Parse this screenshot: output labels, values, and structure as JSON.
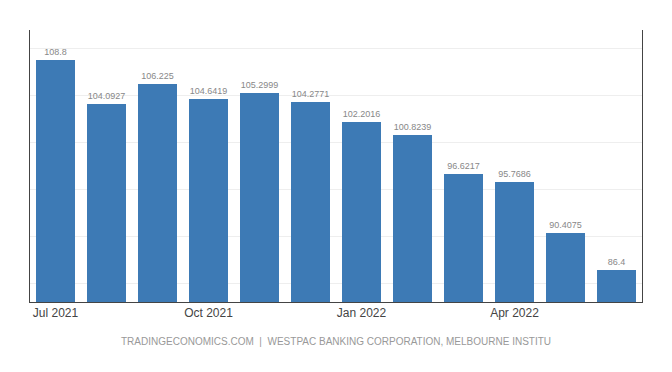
{
  "chart_data": {
    "type": "bar",
    "categories": [
      "Jul 2021",
      null,
      null,
      "Oct 2021",
      null,
      null,
      "Jan 2022",
      null,
      null,
      "Apr 2022",
      null,
      null
    ],
    "values": [
      108.8,
      104.0927,
      106.225,
      104.6419,
      105.2999,
      104.2771,
      102.2016,
      100.8239,
      96.6217,
      95.7686,
      90.4075,
      86.4
    ],
    "color": "#3d7ab5",
    "ylim": [
      83,
      112
    ],
    "yticks": [
      85,
      90,
      95,
      100,
      105,
      110
    ],
    "grid": true,
    "data_labels": true,
    "tick_labels": "x",
    "annotations": [
      "TRADINGECONOMICS.COM  |  WESTPAC BANKING CORPORATION, MELBOURNE INSTITU"
    ]
  }
}
